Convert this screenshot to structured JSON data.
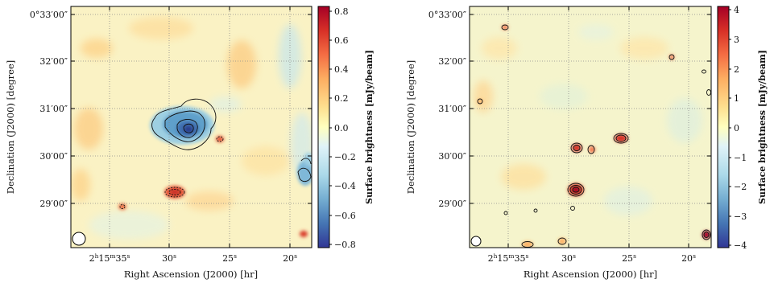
{
  "chart_data": [
    {
      "type": "heatmap",
      "panel": "left",
      "xlabel": "Right Ascension (J2000) [hr]",
      "ylabel": "Declination (J2000) [degree]",
      "colorbar_label": "Surface brightness [mJy/beam]",
      "colormap": "RdYlBu_r (diverging: blue negative, red positive)",
      "x_ticks": [
        {
          "pre": "2",
          "sup1": "h",
          "mid": "15",
          "sup2": "m",
          "sec": "35",
          "sup3": "s",
          "ra_sec": 35
        },
        {
          "pre": "",
          "sup1": "",
          "mid": "",
          "sup2": "",
          "sec": "30",
          "sup3": "s",
          "ra_sec": 30
        },
        {
          "pre": "",
          "sup1": "",
          "mid": "",
          "sup2": "",
          "sec": "25",
          "sup3": "s",
          "ra_sec": 25
        },
        {
          "pre": "",
          "sup1": "",
          "mid": "",
          "sup2": "",
          "sec": "20",
          "sup3": "s",
          "ra_sec": 20
        }
      ],
      "y_ticks": [
        {
          "label": "0°33′00″",
          "dec_arcmin": 33
        },
        {
          "label": "32′00″",
          "dec_arcmin": 32
        },
        {
          "label": "31′00″",
          "dec_arcmin": 31
        },
        {
          "label": "30′00″",
          "dec_arcmin": 30
        },
        {
          "label": "29′00″",
          "dec_arcmin": 29
        }
      ],
      "colorbar_range": [
        -0.8,
        0.8
      ],
      "colorbar_ticks": [
        "0.8",
        "0.6",
        "0.4",
        "0.2",
        "0.0",
        "−0.2",
        "−0.4",
        "−0.6",
        "−0.8"
      ],
      "features": [
        {
          "name": "central negative decrement",
          "ra_sec": 28.2,
          "dec_arcmin": 30.55,
          "peak": -0.8
        },
        {
          "name": "compact positive source",
          "ra_sec": 29.9,
          "dec_arcmin": 29.28,
          "peak": 0.55
        },
        {
          "name": "compact positive source",
          "ra_sec": 25.8,
          "dec_arcmin": 30.35,
          "peak": 0.4
        },
        {
          "name": "compact positive source",
          "ra_sec": 33.9,
          "dec_arcmin": 28.92,
          "peak": 0.35
        },
        {
          "name": "negative feature at edge",
          "ra_sec": 18.6,
          "dec_arcmin": 29.7,
          "peak": -0.45
        }
      ],
      "beam": "circle, lower-left"
    },
    {
      "type": "heatmap",
      "panel": "right",
      "xlabel": "Right Ascension (J2000) [hr]",
      "ylabel": "Declination (J2000) [degree]",
      "colorbar_label": "Surface brightness [mJy/beam]",
      "colormap": "RdYlBu_r (diverging: blue negative, red positive)",
      "x_ticks": [
        {
          "pre": "2",
          "sup1": "h",
          "mid": "15",
          "sup2": "m",
          "sec": "35",
          "sup3": "s",
          "ra_sec": 35
        },
        {
          "pre": "",
          "sup1": "",
          "mid": "",
          "sup2": "",
          "sec": "30",
          "sup3": "s",
          "ra_sec": 30
        },
        {
          "pre": "",
          "sup1": "",
          "mid": "",
          "sup2": "",
          "sec": "25",
          "sup3": "s",
          "ra_sec": 25
        },
        {
          "pre": "",
          "sup1": "",
          "mid": "",
          "sup2": "",
          "sec": "20",
          "sup3": "s",
          "ra_sec": 20
        }
      ],
      "y_ticks": [
        {
          "label": "0°33′00″",
          "dec_arcmin": 33
        },
        {
          "label": "32′00″",
          "dec_arcmin": 32
        },
        {
          "label": "31′00″",
          "dec_arcmin": 31
        },
        {
          "label": "30′00″",
          "dec_arcmin": 30
        },
        {
          "label": "29′00″",
          "dec_arcmin": 29
        }
      ],
      "colorbar_range": [
        -4,
        4
      ],
      "colorbar_ticks": [
        "4",
        "3",
        "2",
        "1",
        "0",
        "−1",
        "−2",
        "−3",
        "−4"
      ],
      "features": [
        {
          "name": "compact positive source",
          "ra_sec": 29.9,
          "dec_arcmin": 29.28,
          "peak": 4
        },
        {
          "name": "compact positive source",
          "ra_sec": 29.9,
          "dec_arcmin": 30.15,
          "peak": 2.5
        },
        {
          "name": "compact positive source",
          "ra_sec": 25.8,
          "dec_arcmin": 30.35,
          "peak": 2.5
        },
        {
          "name": "compact positive source",
          "ra_sec": 28.6,
          "dec_arcmin": 30.12,
          "peak": 1.8
        },
        {
          "name": "compact positive source",
          "ra_sec": 18.4,
          "dec_arcmin": 28.82,
          "peak": 3.5
        },
        {
          "name": "compact positive source",
          "ra_sec": 21.7,
          "dec_arcmin": 32.05,
          "peak": 1.5
        },
        {
          "name": "compact positive source",
          "ra_sec": 33.9,
          "dec_arcmin": 32.88,
          "peak": 1.5
        }
      ],
      "beam": "circle, lower-left"
    }
  ]
}
